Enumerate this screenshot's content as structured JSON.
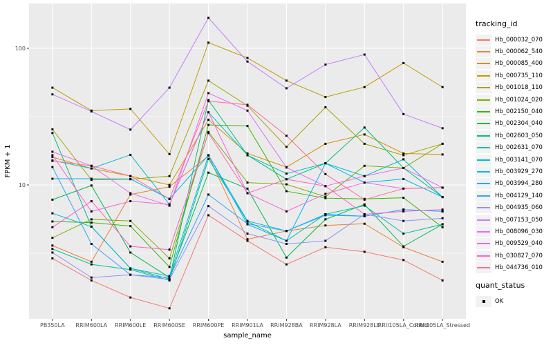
{
  "chart_data": {
    "type": "line",
    "title": "",
    "xlabel": "sample_name",
    "ylabel": "FPKM + 1",
    "y_scale": "log10",
    "y_ticks": [
      100,
      10
    ],
    "y_minor_gridlines": [
      31.6,
      3.16
    ],
    "ylim": [
      1.1,
      215
    ],
    "grid": "major+minor, white on gray panel",
    "legend_position": "right",
    "categories": [
      "PB350LA",
      "RRIM600LA",
      "RRIM600LE",
      "RRIM600SE",
      "RRIM600PE",
      "RRIM901LA",
      "RRIM928BA",
      "RRIM928LA",
      "RRIM928LE",
      "RRII105LA_Control",
      "RRII105LA_Stressed"
    ],
    "series": [
      {
        "name": "Hb_000032_070",
        "color": "#F8766D",
        "values": [
          2.9,
          2.0,
          1.5,
          1.25,
          6.0,
          3.9,
          2.62,
          3.5,
          3.24,
          2.82,
          2.0
        ]
      },
      {
        "name": "Hb_000062_540",
        "color": "#EA8331",
        "values": [
          3.6,
          2.74,
          8.5,
          9.7,
          16.3,
          4.0,
          4.6,
          5.05,
          5.2,
          3.5,
          2.74
        ]
      },
      {
        "name": "Hb_000085_400",
        "color": "#D89000",
        "values": [
          16.0,
          13.2,
          11.6,
          10.0,
          30.0,
          17.0,
          13.5,
          20.0,
          23.4,
          17.0,
          16.7
        ]
      },
      {
        "name": "Hb_000735_110",
        "color": "#C09B00",
        "values": [
          51.5,
          35.0,
          36.0,
          16.8,
          110.0,
          85.0,
          58.0,
          44.0,
          52.0,
          78.0,
          52.0
        ]
      },
      {
        "name": "Hb_001018_110",
        "color": "#A3A500",
        "values": [
          25.5,
          10.9,
          11.0,
          11.6,
          58.0,
          38.0,
          19.0,
          37.0,
          20.0,
          16.5,
          20.0
        ]
      },
      {
        "name": "Hb_001024_020",
        "color": "#7CAE00",
        "values": [
          4.1,
          5.6,
          5.45,
          2.9,
          24.4,
          10.4,
          10.1,
          8.2,
          13.8,
          13.3,
          20.0
        ]
      },
      {
        "name": "Hb_002150_040",
        "color": "#39B600",
        "values": [
          5.4,
          5.3,
          5.0,
          2.51,
          27.5,
          27.0,
          9.0,
          8.0,
          7.9,
          8.05,
          4.9
        ]
      },
      {
        "name": "Hb_002304_040",
        "color": "#00BB4E",
        "values": [
          7.8,
          9.9,
          3.2,
          2.1,
          12.3,
          9.4,
          2.94,
          5.6,
          7.2,
          3.55,
          5.15
        ]
      },
      {
        "name": "Hb_002603_050",
        "color": "#00BF7D",
        "values": [
          24.0,
          4.95,
          2.45,
          2.05,
          41.8,
          16.5,
          11.0,
          14.4,
          26.3,
          13.3,
          8.15
        ]
      },
      {
        "name": "Hb_002631_070",
        "color": "#00C1A3",
        "values": [
          3.4,
          2.62,
          2.4,
          2.0,
          15.5,
          5.4,
          3.9,
          6.1,
          7.05,
          4.4,
          5.15
        ]
      },
      {
        "name": "Hb_003141_070",
        "color": "#00BFC4",
        "values": [
          15.1,
          13.2,
          16.6,
          7.2,
          34.0,
          16.5,
          12.1,
          14.4,
          11.6,
          15.4,
          8.15
        ]
      },
      {
        "name": "Hb_003929_270",
        "color": "#00BAE0",
        "values": [
          6.2,
          4.95,
          2.45,
          2.15,
          16.5,
          5.45,
          4.6,
          6.1,
          5.9,
          6.6,
          6.4
        ]
      },
      {
        "name": "Hb_003994_280",
        "color": "#00B0F6",
        "values": [
          11.1,
          11.1,
          11.05,
          7.9,
          16.5,
          5.15,
          3.9,
          14.4,
          10.4,
          11.05,
          8.15
        ]
      },
      {
        "name": "Hb_004129_140",
        "color": "#35A2FF",
        "values": [
          13.5,
          3.7,
          2.2,
          2.1,
          8.5,
          5.2,
          4.6,
          6.0,
          5.9,
          6.6,
          6.4
        ]
      },
      {
        "name": "Hb_004935_060",
        "color": "#9590FF",
        "values": [
          3.2,
          2.1,
          2.2,
          2.03,
          7.0,
          4.4,
          3.7,
          3.9,
          6.1,
          5.45,
          5.7
        ]
      },
      {
        "name": "Hb_007153_050",
        "color": "#C77CFF",
        "values": [
          46.0,
          34.5,
          25.4,
          51.5,
          167.0,
          80.0,
          51.0,
          76.0,
          90.0,
          33.0,
          26.0
        ]
      },
      {
        "name": "Hb_008096_030",
        "color": "#E76BF3",
        "values": [
          17.5,
          13.8,
          8.7,
          7.05,
          47.0,
          35.0,
          13.4,
          9.8,
          11.6,
          13.3,
          9.55
        ]
      },
      {
        "name": "Hb_009529_040",
        "color": "#FA62DB",
        "values": [
          16.5,
          6.4,
          7.6,
          7.2,
          34.0,
          8.7,
          6.4,
          8.6,
          10.4,
          9.4,
          9.55
        ]
      },
      {
        "name": "Hb_030827_070",
        "color": "#FF61C9",
        "values": [
          4.9,
          7.6,
          3.55,
          3.36,
          24.0,
          8.7,
          11.0,
          9.8,
          6.1,
          6.4,
          6.6
        ]
      },
      {
        "name": "Hb_044736_010",
        "color": "#FF6A98",
        "values": [
          15.0,
          13.8,
          11.6,
          7.9,
          41.0,
          38.6,
          22.9,
          12.0,
          7.8,
          9.4,
          9.55
        ]
      }
    ],
    "legend": {
      "color_title": "tracking_id",
      "shape_title": "quant_status",
      "shape_items": [
        {
          "label": "OK",
          "marker": "black-square-point"
        }
      ]
    }
  },
  "colors": {
    "background": "#FFFFFF",
    "panel_bg": "#EBEBEB",
    "gridline": "#FFFFFF",
    "point": "#000000",
    "axis_text": "#4D4D4D",
    "axis_title": "#000000",
    "legend_key_bg": "#F2F2F2"
  }
}
